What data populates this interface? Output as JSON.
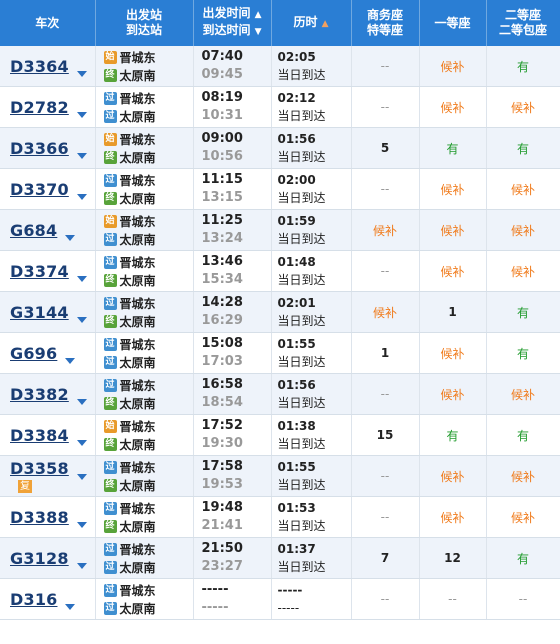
{
  "header": {
    "train": "车次",
    "stations": [
      "出发站",
      "到达站"
    ],
    "times": [
      "出发时间",
      "到达时间"
    ],
    "duration": "历时",
    "business": [
      "商务座",
      "特等座"
    ],
    "first": "一等座",
    "second": [
      "二等座",
      "二等包座"
    ]
  },
  "colors": {
    "header_bg": "#2a7ed4",
    "row_alt": "#eef3fa",
    "wait": "#f07a1a",
    "have": "#1e9a2a"
  },
  "rows": [
    {
      "train": "D3364",
      "fu": "",
      "from_icon": "始",
      "from": "晋城东",
      "to_icon": "终",
      "to": "太原南",
      "dep": "07:40",
      "arr": "09:45",
      "dur": "02:05",
      "arrive": "当日到达",
      "business": "--",
      "first": "候补",
      "second": "有"
    },
    {
      "train": "D2782",
      "fu": "",
      "from_icon": "过",
      "from": "晋城东",
      "to_icon": "过",
      "to": "太原南",
      "dep": "08:19",
      "arr": "10:31",
      "dur": "02:12",
      "arrive": "当日到达",
      "business": "--",
      "first": "候补",
      "second": "候补"
    },
    {
      "train": "D3366",
      "fu": "",
      "from_icon": "始",
      "from": "晋城东",
      "to_icon": "终",
      "to": "太原南",
      "dep": "09:00",
      "arr": "10:56",
      "dur": "01:56",
      "arrive": "当日到达",
      "business": "5",
      "first": "有",
      "second": "有"
    },
    {
      "train": "D3370",
      "fu": "",
      "from_icon": "过",
      "from": "晋城东",
      "to_icon": "终",
      "to": "太原南",
      "dep": "11:15",
      "arr": "13:15",
      "dur": "02:00",
      "arrive": "当日到达",
      "business": "--",
      "first": "候补",
      "second": "候补"
    },
    {
      "train": "G684",
      "fu": "",
      "from_icon": "始",
      "from": "晋城东",
      "to_icon": "过",
      "to": "太原南",
      "dep": "11:25",
      "arr": "13:24",
      "dur": "01:59",
      "arrive": "当日到达",
      "business": "候补",
      "first": "候补",
      "second": "候补"
    },
    {
      "train": "D3374",
      "fu": "",
      "from_icon": "过",
      "from": "晋城东",
      "to_icon": "终",
      "to": "太原南",
      "dep": "13:46",
      "arr": "15:34",
      "dur": "01:48",
      "arrive": "当日到达",
      "business": "--",
      "first": "候补",
      "second": "候补"
    },
    {
      "train": "G3144",
      "fu": "",
      "from_icon": "过",
      "from": "晋城东",
      "to_icon": "终",
      "to": "太原南",
      "dep": "14:28",
      "arr": "16:29",
      "dur": "02:01",
      "arrive": "当日到达",
      "business": "候补",
      "first": "1",
      "second": "有"
    },
    {
      "train": "G696",
      "fu": "",
      "from_icon": "过",
      "from": "晋城东",
      "to_icon": "过",
      "to": "太原南",
      "dep": "15:08",
      "arr": "17:03",
      "dur": "01:55",
      "arrive": "当日到达",
      "business": "1",
      "first": "候补",
      "second": "有"
    },
    {
      "train": "D3382",
      "fu": "",
      "from_icon": "过",
      "from": "晋城东",
      "to_icon": "终",
      "to": "太原南",
      "dep": "16:58",
      "arr": "18:54",
      "dur": "01:56",
      "arrive": "当日到达",
      "business": "--",
      "first": "候补",
      "second": "候补"
    },
    {
      "train": "D3384",
      "fu": "",
      "from_icon": "始",
      "from": "晋城东",
      "to_icon": "终",
      "to": "太原南",
      "dep": "17:52",
      "arr": "19:30",
      "dur": "01:38",
      "arrive": "当日到达",
      "business": "15",
      "first": "有",
      "second": "有"
    },
    {
      "train": "D3358",
      "fu": "复",
      "from_icon": "过",
      "from": "晋城东",
      "to_icon": "终",
      "to": "太原南",
      "dep": "17:58",
      "arr": "19:53",
      "dur": "01:55",
      "arrive": "当日到达",
      "business": "--",
      "first": "候补",
      "second": "候补"
    },
    {
      "train": "D3388",
      "fu": "",
      "from_icon": "过",
      "from": "晋城东",
      "to_icon": "终",
      "to": "太原南",
      "dep": "19:48",
      "arr": "21:41",
      "dur": "01:53",
      "arrive": "当日到达",
      "business": "--",
      "first": "候补",
      "second": "候补"
    },
    {
      "train": "G3128",
      "fu": "",
      "from_icon": "过",
      "from": "晋城东",
      "to_icon": "过",
      "to": "太原南",
      "dep": "21:50",
      "arr": "23:27",
      "dur": "01:37",
      "arrive": "当日到达",
      "business": "7",
      "first": "12",
      "second": "有"
    },
    {
      "train": "D316",
      "fu": "",
      "from_icon": "过",
      "from": "晋城东",
      "to_icon": "过",
      "to": "太原南",
      "dep": "-----",
      "arr": "-----",
      "dur": "-----",
      "arrive": "-----",
      "business": "--",
      "first": "--",
      "second": "--"
    }
  ]
}
